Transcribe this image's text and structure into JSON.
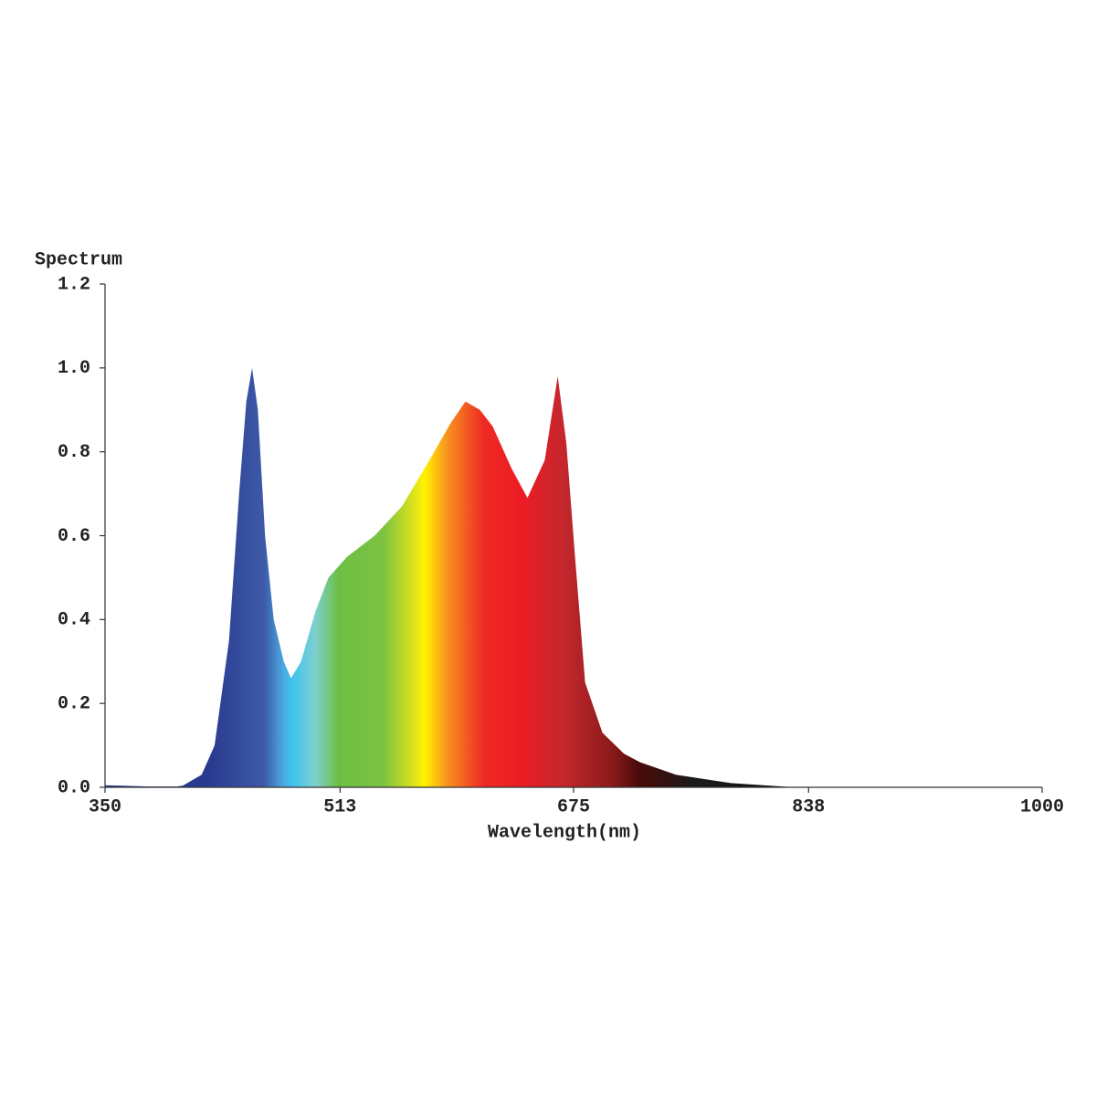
{
  "chart_data": {
    "type": "area",
    "ylabel": "Spectrum",
    "xlabel": "Wavelength(nm)",
    "x": [
      350,
      380,
      400,
      404,
      417,
      426,
      436,
      443,
      448,
      452,
      456,
      461,
      467,
      474,
      479,
      486,
      496,
      505,
      518,
      537,
      556,
      575,
      590,
      600,
      610,
      619,
      632,
      643,
      655,
      664,
      670,
      676,
      683,
      695,
      710,
      721,
      746,
      784,
      828,
      900,
      1000
    ],
    "values": [
      0.005,
      0.002,
      0.002,
      0.004,
      0.03,
      0.1,
      0.35,
      0.7,
      0.92,
      1.0,
      0.9,
      0.6,
      0.4,
      0.3,
      0.26,
      0.3,
      0.42,
      0.5,
      0.55,
      0.6,
      0.67,
      0.78,
      0.87,
      0.92,
      0.9,
      0.86,
      0.76,
      0.69,
      0.78,
      0.98,
      0.82,
      0.55,
      0.25,
      0.13,
      0.08,
      0.06,
      0.03,
      0.01,
      0.0,
      0.0,
      0.0
    ],
    "xlim": [
      350,
      1000
    ],
    "xticks": [
      350,
      513,
      675,
      838,
      1000
    ],
    "ylim": [
      0,
      1.2
    ],
    "yticks": [
      {
        "value": 0,
        "label": "0.0"
      },
      0.2,
      0.4,
      0.6,
      0.8,
      {
        "value": 1,
        "label": "1.0"
      },
      1.2
    ]
  }
}
